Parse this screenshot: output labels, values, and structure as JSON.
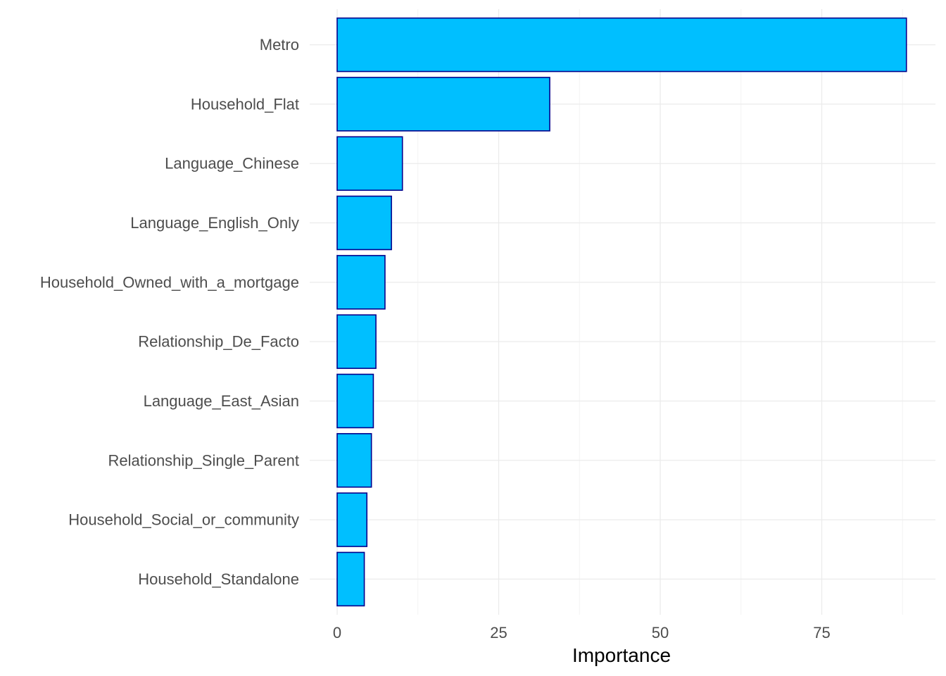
{
  "chart_data": {
    "type": "bar",
    "orientation": "horizontal",
    "categories": [
      "Metro",
      "Household_Flat",
      "Language_Chinese",
      "Language_English_Only",
      "Household_Owned_with_a_mortgage",
      "Relationship_De_Facto",
      "Language_East_Asian",
      "Relationship_Single_Parent",
      "Household_Social_or_community",
      "Household_Standalone"
    ],
    "values": [
      88.1,
      32.9,
      10.1,
      8.4,
      7.4,
      6.0,
      5.6,
      5.3,
      4.6,
      4.2
    ],
    "xlabel": "Importance",
    "ylabel": "",
    "title": "",
    "xlim": [
      -3.5,
      92.5
    ],
    "xticks": [
      "0",
      "25",
      "50",
      "75"
    ],
    "grid": true,
    "legend": "none",
    "colors": {
      "bar_fill": "#00bfff",
      "bar_outline": "#00008b",
      "grid": "#ebebeb",
      "tick_text": "#4d4d4d",
      "axis_title": "#000000"
    }
  }
}
